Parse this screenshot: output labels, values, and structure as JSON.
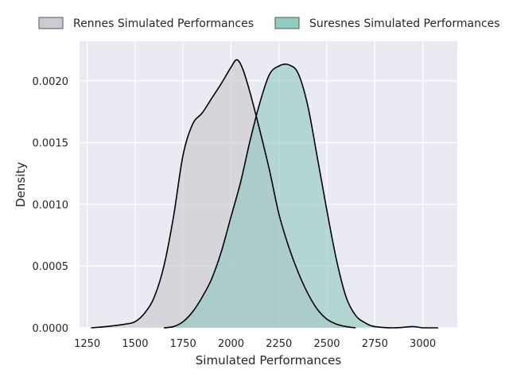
{
  "chart_data": {
    "type": "area",
    "xlabel": "Simulated Performances",
    "ylabel": "Density",
    "xlim": [
      1210,
      3180
    ],
    "ylim": [
      0,
      0.00232
    ],
    "x_ticks": [
      1250,
      1500,
      1750,
      2000,
      2250,
      2500,
      2750,
      3000
    ],
    "y_ticks": [
      0.0,
      0.0005,
      0.001,
      0.0015,
      0.002
    ],
    "y_tick_labels": [
      "0.0000",
      "0.0005",
      "0.0010",
      "0.0015",
      "0.0020"
    ],
    "x_tick_labels": [
      "1250",
      "1500",
      "1750",
      "2000",
      "2250",
      "2500",
      "2750",
      "3000"
    ],
    "grid": true,
    "background": "#eaeaf2",
    "legend_placement": "top",
    "series": [
      {
        "name": "Rennes Simulated Performances",
        "fill": "#c9c7cd",
        "fill_opacity": 0.6,
        "points": [
          [
            1270,
            0.0
          ],
          [
            1350,
            1e-05
          ],
          [
            1450,
            3e-05
          ],
          [
            1500,
            5e-05
          ],
          [
            1550,
            0.00012
          ],
          [
            1600,
            0.00025
          ],
          [
            1650,
            0.0005
          ],
          [
            1700,
            0.0009
          ],
          [
            1750,
            0.0014
          ],
          [
            1800,
            0.00165
          ],
          [
            1850,
            0.00174
          ],
          [
            1900,
            0.00186
          ],
          [
            1950,
            0.00198
          ],
          [
            2000,
            0.00211
          ],
          [
            2030,
            0.00217
          ],
          [
            2060,
            0.0021
          ],
          [
            2100,
            0.0019
          ],
          [
            2150,
            0.0016
          ],
          [
            2200,
            0.00128
          ],
          [
            2250,
            0.00092
          ],
          [
            2300,
            0.00066
          ],
          [
            2350,
            0.00045
          ],
          [
            2400,
            0.00028
          ],
          [
            2450,
            0.00015
          ],
          [
            2500,
            7e-05
          ],
          [
            2550,
            3e-05
          ],
          [
            2600,
            1e-05
          ],
          [
            2650,
            0.0
          ]
        ]
      },
      {
        "name": "Suresnes Simulated Performances",
        "fill": "#86c5b9",
        "fill_opacity": 0.55,
        "points": [
          [
            1650,
            0.0
          ],
          [
            1700,
            1e-05
          ],
          [
            1750,
            5e-05
          ],
          [
            1800,
            0.00013
          ],
          [
            1850,
            0.00025
          ],
          [
            1900,
            0.0004
          ],
          [
            1950,
            0.00062
          ],
          [
            2000,
            0.0009
          ],
          [
            2050,
            0.00118
          ],
          [
            2100,
            0.00152
          ],
          [
            2150,
            0.00182
          ],
          [
            2200,
            0.00205
          ],
          [
            2250,
            0.00212
          ],
          [
            2300,
            0.00213
          ],
          [
            2350,
            0.00206
          ],
          [
            2400,
            0.0018
          ],
          [
            2450,
            0.00138
          ],
          [
            2500,
            0.00095
          ],
          [
            2550,
            0.00055
          ],
          [
            2600,
            0.00025
          ],
          [
            2650,
            0.0001
          ],
          [
            2700,
            4e-05
          ],
          [
            2750,
            1e-05
          ],
          [
            2850,
            0.0
          ],
          [
            2950,
            1e-05
          ],
          [
            3000,
            0.0
          ],
          [
            3080,
            0.0
          ]
        ]
      }
    ]
  }
}
